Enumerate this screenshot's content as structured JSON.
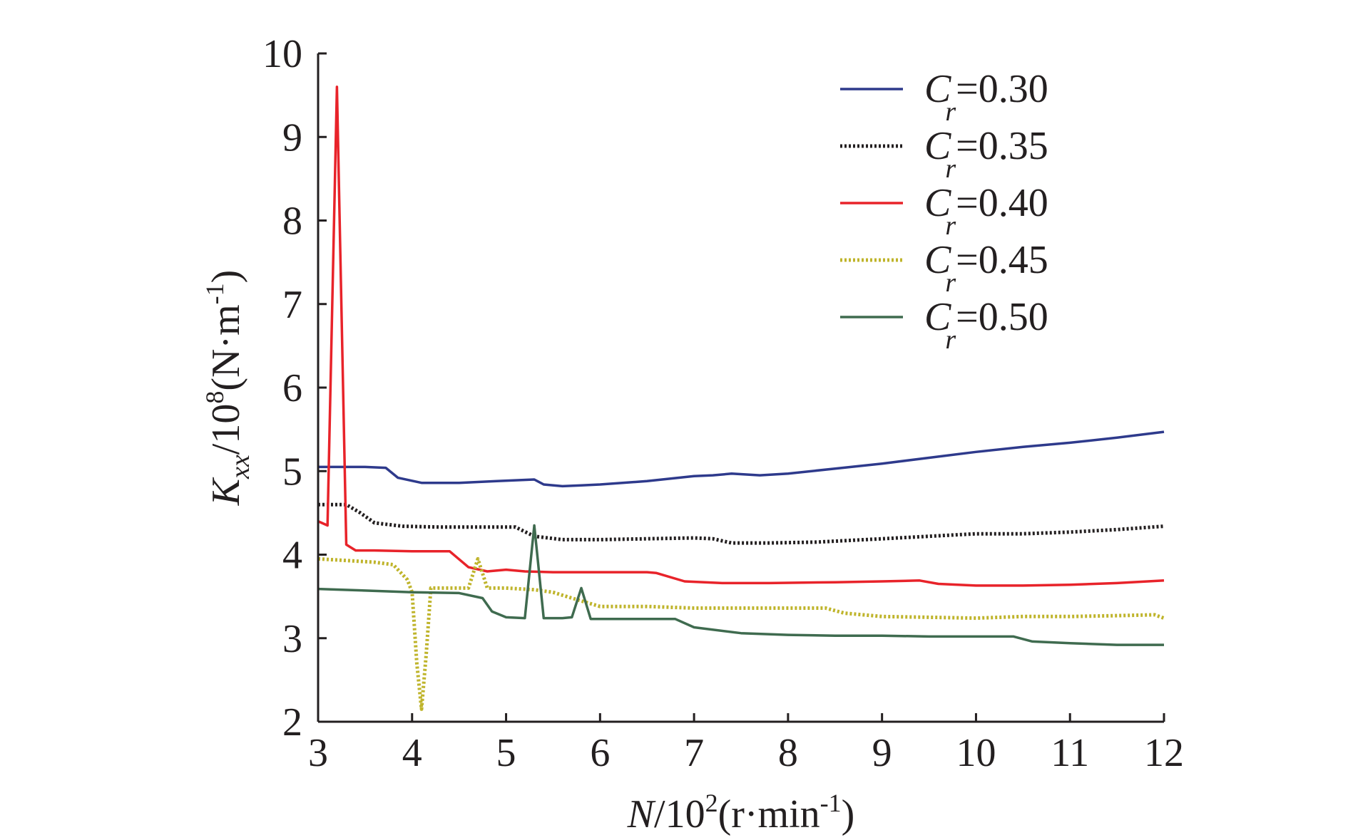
{
  "chart_data": {
    "type": "line",
    "xlabel": {
      "var": "N",
      "rest": "/10",
      "sup": "2",
      "unit": "(r·min",
      "unit_sup": "-1",
      "close": ")"
    },
    "ylabel": {
      "var": "K",
      "sub": "xx",
      "rest": "/10",
      "sup": "8",
      "unit": "(N·m",
      "unit_sup": "-1",
      "close": ")"
    },
    "xlim": [
      3,
      12
    ],
    "ylim": [
      2,
      10
    ],
    "xticks": [
      3,
      4,
      5,
      6,
      7,
      8,
      9,
      10,
      11,
      12
    ],
    "yticks": [
      2,
      3,
      4,
      5,
      6,
      7,
      8,
      9,
      10
    ],
    "legend_position": "top-right",
    "series": [
      {
        "name": "Cr=0.30",
        "legend_var": "C",
        "legend_sub": "r",
        "legend_val": "=0.30",
        "color": "#2e3a8c",
        "dash": "solid",
        "points": [
          [
            3.0,
            5.05
          ],
          [
            3.5,
            5.05
          ],
          [
            3.72,
            5.04
          ],
          [
            3.85,
            4.92
          ],
          [
            4.1,
            4.86
          ],
          [
            4.5,
            4.86
          ],
          [
            4.9,
            4.88
          ],
          [
            5.3,
            4.9
          ],
          [
            5.4,
            4.84
          ],
          [
            5.6,
            4.82
          ],
          [
            5.8,
            4.83
          ],
          [
            6.0,
            4.84
          ],
          [
            6.5,
            4.88
          ],
          [
            7.0,
            4.94
          ],
          [
            7.2,
            4.95
          ],
          [
            7.4,
            4.97
          ],
          [
            7.7,
            4.95
          ],
          [
            8.0,
            4.97
          ],
          [
            8.5,
            5.03
          ],
          [
            9.0,
            5.09
          ],
          [
            9.5,
            5.16
          ],
          [
            10.0,
            5.23
          ],
          [
            10.5,
            5.29
          ],
          [
            11.0,
            5.34
          ],
          [
            11.5,
            5.4
          ],
          [
            12.0,
            5.47
          ]
        ]
      },
      {
        "name": "Cr=0.35",
        "legend_var": "C",
        "legend_sub": "r",
        "legend_val": "=0.35",
        "color": "#231f20",
        "dash": "dot",
        "points": [
          [
            3.0,
            4.6
          ],
          [
            3.3,
            4.6
          ],
          [
            3.45,
            4.5
          ],
          [
            3.6,
            4.38
          ],
          [
            3.9,
            4.34
          ],
          [
            4.3,
            4.33
          ],
          [
            4.8,
            4.33
          ],
          [
            5.1,
            4.33
          ],
          [
            5.3,
            4.22
          ],
          [
            5.6,
            4.18
          ],
          [
            6.0,
            4.18
          ],
          [
            6.5,
            4.19
          ],
          [
            7.0,
            4.2
          ],
          [
            7.2,
            4.19
          ],
          [
            7.4,
            4.14
          ],
          [
            7.8,
            4.14
          ],
          [
            8.3,
            4.15
          ],
          [
            9.0,
            4.19
          ],
          [
            9.5,
            4.22
          ],
          [
            10.0,
            4.25
          ],
          [
            10.5,
            4.25
          ],
          [
            11.0,
            4.27
          ],
          [
            11.5,
            4.3
          ],
          [
            12.0,
            4.34
          ]
        ]
      },
      {
        "name": "Cr=0.40",
        "legend_var": "C",
        "legend_sub": "r",
        "legend_val": "=0.40",
        "color": "#e8232a",
        "dash": "solid",
        "points": [
          [
            3.0,
            4.4
          ],
          [
            3.1,
            4.35
          ],
          [
            3.2,
            9.6
          ],
          [
            3.3,
            4.12
          ],
          [
            3.4,
            4.05
          ],
          [
            3.6,
            4.05
          ],
          [
            4.0,
            4.04
          ],
          [
            4.4,
            4.04
          ],
          [
            4.6,
            3.85
          ],
          [
            4.8,
            3.8
          ],
          [
            5.0,
            3.82
          ],
          [
            5.2,
            3.8
          ],
          [
            5.5,
            3.79
          ],
          [
            6.0,
            3.79
          ],
          [
            6.5,
            3.79
          ],
          [
            6.6,
            3.78
          ],
          [
            6.9,
            3.68
          ],
          [
            7.3,
            3.66
          ],
          [
            7.8,
            3.66
          ],
          [
            8.5,
            3.67
          ],
          [
            9.0,
            3.68
          ],
          [
            9.4,
            3.69
          ],
          [
            9.6,
            3.65
          ],
          [
            10.0,
            3.63
          ],
          [
            10.5,
            3.63
          ],
          [
            11.0,
            3.64
          ],
          [
            11.5,
            3.66
          ],
          [
            12.0,
            3.69
          ]
        ]
      },
      {
        "name": "Cr=0.45",
        "legend_var": "C",
        "legend_sub": "r",
        "legend_val": "=0.45",
        "color": "#bfb42b",
        "dash": "dot",
        "points": [
          [
            3.0,
            3.95
          ],
          [
            3.3,
            3.93
          ],
          [
            3.6,
            3.91
          ],
          [
            3.8,
            3.88
          ],
          [
            3.95,
            3.7
          ],
          [
            4.0,
            3.55
          ],
          [
            4.05,
            2.7
          ],
          [
            4.1,
            2.15
          ],
          [
            4.15,
            2.8
          ],
          [
            4.2,
            3.6
          ],
          [
            4.4,
            3.6
          ],
          [
            4.6,
            3.6
          ],
          [
            4.7,
            3.95
          ],
          [
            4.8,
            3.6
          ],
          [
            5.0,
            3.6
          ],
          [
            5.3,
            3.58
          ],
          [
            5.5,
            3.55
          ],
          [
            5.7,
            3.48
          ],
          [
            6.0,
            3.38
          ],
          [
            6.5,
            3.38
          ],
          [
            7.0,
            3.36
          ],
          [
            7.5,
            3.36
          ],
          [
            8.0,
            3.36
          ],
          [
            8.4,
            3.36
          ],
          [
            8.6,
            3.3
          ],
          [
            9.0,
            3.26
          ],
          [
            9.5,
            3.25
          ],
          [
            10.0,
            3.24
          ],
          [
            10.5,
            3.26
          ],
          [
            11.0,
            3.26
          ],
          [
            11.5,
            3.27
          ],
          [
            11.9,
            3.28
          ],
          [
            12.0,
            3.24
          ]
        ]
      },
      {
        "name": "Cr=0.50",
        "legend_var": "C",
        "legend_sub": "r",
        "legend_val": "=0.50",
        "color": "#3f6b4f",
        "dash": "solid",
        "points": [
          [
            3.0,
            3.59
          ],
          [
            3.5,
            3.57
          ],
          [
            4.0,
            3.55
          ],
          [
            4.5,
            3.54
          ],
          [
            4.75,
            3.48
          ],
          [
            4.85,
            3.32
          ],
          [
            5.0,
            3.25
          ],
          [
            5.2,
            3.24
          ],
          [
            5.3,
            4.35
          ],
          [
            5.4,
            3.24
          ],
          [
            5.6,
            3.24
          ],
          [
            5.7,
            3.25
          ],
          [
            5.8,
            3.6
          ],
          [
            5.9,
            3.23
          ],
          [
            6.0,
            3.23
          ],
          [
            6.5,
            3.23
          ],
          [
            6.8,
            3.23
          ],
          [
            7.0,
            3.13
          ],
          [
            7.5,
            3.06
          ],
          [
            8.0,
            3.04
          ],
          [
            8.5,
            3.03
          ],
          [
            9.0,
            3.03
          ],
          [
            9.5,
            3.02
          ],
          [
            10.0,
            3.02
          ],
          [
            10.4,
            3.02
          ],
          [
            10.6,
            2.96
          ],
          [
            11.0,
            2.94
          ],
          [
            11.5,
            2.92
          ],
          [
            12.0,
            2.92
          ]
        ]
      }
    ]
  }
}
